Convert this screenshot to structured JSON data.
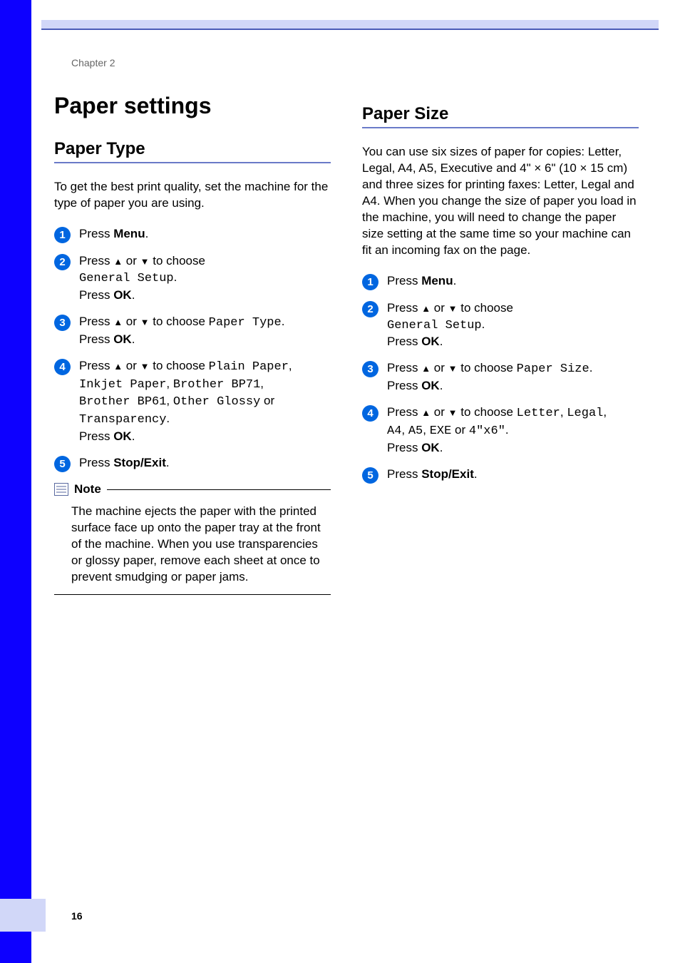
{
  "chapter": "Chapter 2",
  "pageNumber": "16",
  "title": "Paper settings",
  "left": {
    "heading": "Paper Type",
    "intro": "To get the best print quality, set the machine for the type of paper you are using.",
    "steps": [
      {
        "num": "1",
        "parts": [
          {
            "t": "Press "
          },
          {
            "t": "Menu",
            "b": true
          },
          {
            "t": "."
          }
        ]
      },
      {
        "num": "2",
        "parts": [
          {
            "t": "Press "
          },
          {
            "t": "▲",
            "arrow": true
          },
          {
            "t": " or "
          },
          {
            "t": "▼",
            "arrow": true
          },
          {
            "t": " to choose "
          },
          {
            "br": true
          },
          {
            "t": "General Setup",
            "mono": true
          },
          {
            "t": "."
          },
          {
            "br": true
          },
          {
            "t": "Press "
          },
          {
            "t": "OK",
            "b": true
          },
          {
            "t": "."
          }
        ]
      },
      {
        "num": "3",
        "parts": [
          {
            "t": "Press "
          },
          {
            "t": "▲",
            "arrow": true
          },
          {
            "t": " or "
          },
          {
            "t": "▼",
            "arrow": true
          },
          {
            "t": " to choose "
          },
          {
            "t": "Paper Type",
            "mono": true
          },
          {
            "t": "."
          },
          {
            "br": true
          },
          {
            "t": "Press "
          },
          {
            "t": "OK",
            "b": true
          },
          {
            "t": "."
          }
        ]
      },
      {
        "num": "4",
        "parts": [
          {
            "t": "Press "
          },
          {
            "t": "▲",
            "arrow": true
          },
          {
            "t": " or "
          },
          {
            "t": "▼",
            "arrow": true
          },
          {
            "t": " to choose "
          },
          {
            "t": "Plain Paper",
            "mono": true
          },
          {
            "t": ", "
          },
          {
            "br": true
          },
          {
            "t": "Inkjet Paper",
            "mono": true
          },
          {
            "t": ", "
          },
          {
            "t": "Brother BP71",
            "mono": true
          },
          {
            "t": ", "
          },
          {
            "br": true
          },
          {
            "t": "Brother BP61",
            "mono": true
          },
          {
            "t": ", "
          },
          {
            "t": "Other Glossy",
            "mono": true
          },
          {
            "t": " or "
          },
          {
            "br": true
          },
          {
            "t": "Transparency",
            "mono": true
          },
          {
            "t": "."
          },
          {
            "br": true
          },
          {
            "t": "Press "
          },
          {
            "t": "OK",
            "b": true
          },
          {
            "t": "."
          }
        ]
      },
      {
        "num": "5",
        "parts": [
          {
            "t": "Press "
          },
          {
            "t": "Stop/Exit",
            "b": true
          },
          {
            "t": "."
          }
        ]
      }
    ],
    "note": {
      "title": "Note",
      "body": "The machine ejects the paper with the printed surface face up onto the paper tray at the front of the machine. When you use transparencies or glossy paper, remove each sheet at once to prevent smudging or paper jams."
    }
  },
  "right": {
    "heading": "Paper Size",
    "intro": "You can use six sizes of paper for copies: Letter, Legal, A4, A5, Executive and 4\" × 6\" (10 × 15 cm) and three sizes for printing faxes: Letter, Legal and A4. When you change the size of paper you load in the machine, you will need to change the paper size setting at the same time so your machine can fit an incoming fax on the page.",
    "steps": [
      {
        "num": "1",
        "parts": [
          {
            "t": "Press "
          },
          {
            "t": "Menu",
            "b": true
          },
          {
            "t": "."
          }
        ]
      },
      {
        "num": "2",
        "parts": [
          {
            "t": "Press "
          },
          {
            "t": "▲",
            "arrow": true
          },
          {
            "t": " or "
          },
          {
            "t": "▼",
            "arrow": true
          },
          {
            "t": " to choose "
          },
          {
            "br": true
          },
          {
            "t": "General Setup",
            "mono": true
          },
          {
            "t": "."
          },
          {
            "br": true
          },
          {
            "t": "Press "
          },
          {
            "t": "OK",
            "b": true
          },
          {
            "t": "."
          }
        ]
      },
      {
        "num": "3",
        "parts": [
          {
            "t": "Press "
          },
          {
            "t": "▲",
            "arrow": true
          },
          {
            "t": " or "
          },
          {
            "t": "▼",
            "arrow": true
          },
          {
            "t": " to choose "
          },
          {
            "t": "Paper Size",
            "mono": true
          },
          {
            "t": "."
          },
          {
            "br": true
          },
          {
            "t": "Press "
          },
          {
            "t": "OK",
            "b": true
          },
          {
            "t": "."
          }
        ]
      },
      {
        "num": "4",
        "parts": [
          {
            "t": "Press "
          },
          {
            "t": "▲",
            "arrow": true
          },
          {
            "t": " or "
          },
          {
            "t": "▼",
            "arrow": true
          },
          {
            "t": " to choose "
          },
          {
            "t": "Letter",
            "mono": true
          },
          {
            "t": ", "
          },
          {
            "t": "Legal",
            "mono": true
          },
          {
            "t": ", "
          },
          {
            "br": true
          },
          {
            "t": "A4",
            "mono": true
          },
          {
            "t": ", "
          },
          {
            "t": "A5",
            "mono": true
          },
          {
            "t": ", "
          },
          {
            "t": "EXE",
            "mono": true
          },
          {
            "t": " or "
          },
          {
            "t": "4\"x6\"",
            "mono": true
          },
          {
            "t": "."
          },
          {
            "br": true
          },
          {
            "t": "Press "
          },
          {
            "t": "OK",
            "b": true
          },
          {
            "t": "."
          }
        ]
      },
      {
        "num": "5",
        "parts": [
          {
            "t": "Press "
          },
          {
            "t": "Stop/Exit",
            "b": true
          },
          {
            "t": "."
          }
        ]
      }
    ]
  }
}
